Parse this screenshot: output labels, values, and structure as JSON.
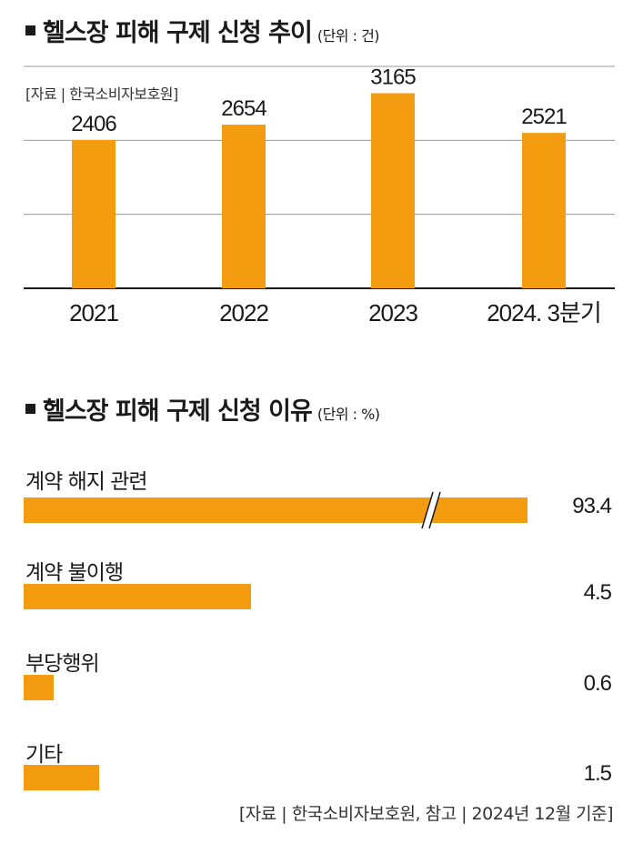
{
  "section1": {
    "title": "헬스장 피해 구제 신청 추이",
    "unit": "(단위 : 건)",
    "source": "[자료 | 한국소비자보호원]"
  },
  "section2": {
    "title": "헬스장 피해 구제 신청 이유",
    "unit": "(단위 : %)",
    "footer": "[자료 | 한국소비자보호원, 참고 | 2024년 12월 기준]"
  },
  "colors": {
    "bar": "#f39c0f",
    "grid": "#9a9a9a",
    "axis": "#1a1a1a"
  },
  "chart_data": [
    {
      "type": "bar",
      "title": "헬스장 피해 구제 신청 추이",
      "unit": "건",
      "categories": [
        "2021",
        "2022",
        "2023",
        "2024. 3분기"
      ],
      "values": [
        2406,
        2654,
        3165,
        2521
      ],
      "ylim": [
        0,
        3600
      ],
      "grid": true,
      "orientation": "vertical"
    },
    {
      "type": "bar",
      "title": "헬스장 피해 구제 신청 이유",
      "unit": "%",
      "orientation": "horizontal",
      "categories": [
        "계약 해지 관련",
        "계약 불이행",
        "부당행위",
        "기타"
      ],
      "values": [
        93.4,
        4.5,
        0.6,
        1.5
      ],
      "value_labels": [
        "93.4",
        "4.5",
        "0.6",
        "1.5"
      ],
      "axis_break_on_first_bar": true
    }
  ]
}
